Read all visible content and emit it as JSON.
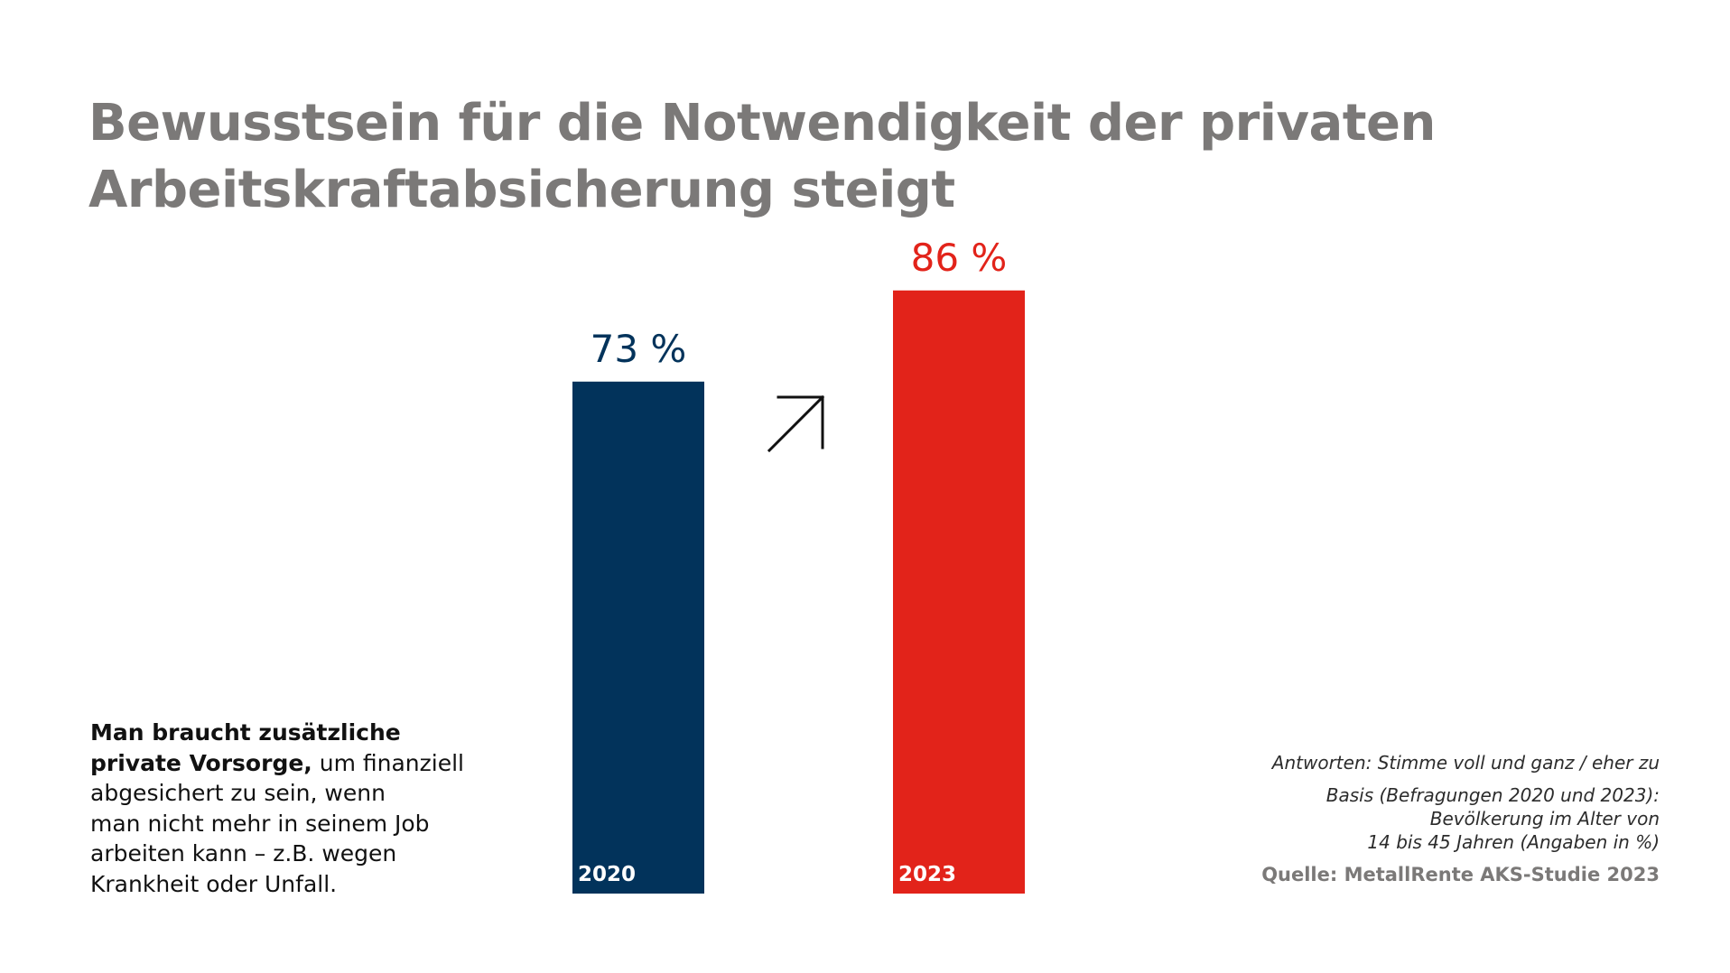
{
  "title": {
    "line1": "Bewusstsein für die Notwendigkeit der privaten",
    "line2": "Arbeitskraftabsicherung steigt"
  },
  "description": {
    "bold_line1": "Man braucht zusätzliche",
    "bold_line2": "private Vorsorge,",
    "rest_line2": " um finanziell",
    "line3": "abgesichert zu sein, wenn",
    "line4": "man nicht mehr in seinem Job",
    "line5": "arbeiten kann – z.B. wegen",
    "line6": "Krankheit oder Unfall."
  },
  "notes": {
    "answers": "Antworten: Stimme voll und ganz / eher zu",
    "basis_line1": "Basis (Befragungen 2020 und 2023):",
    "basis_line2": "Bevölkerung im Alter von",
    "basis_line3": "14 bis 45 Jahren (Angaben in %)",
    "source": "Quelle: MetallRente AKS-Studie 2023"
  },
  "trend_icon": "arrow-up-right-icon",
  "chart_data": {
    "type": "bar",
    "unit": "%",
    "ylim": [
      0,
      100
    ],
    "categories": [
      "2020",
      "2023"
    ],
    "values": [
      73,
      86
    ],
    "value_labels": [
      "73 %",
      "86 %"
    ],
    "colors": [
      "#02335b",
      "#e2231a"
    ],
    "grid": false,
    "legend": "none"
  }
}
